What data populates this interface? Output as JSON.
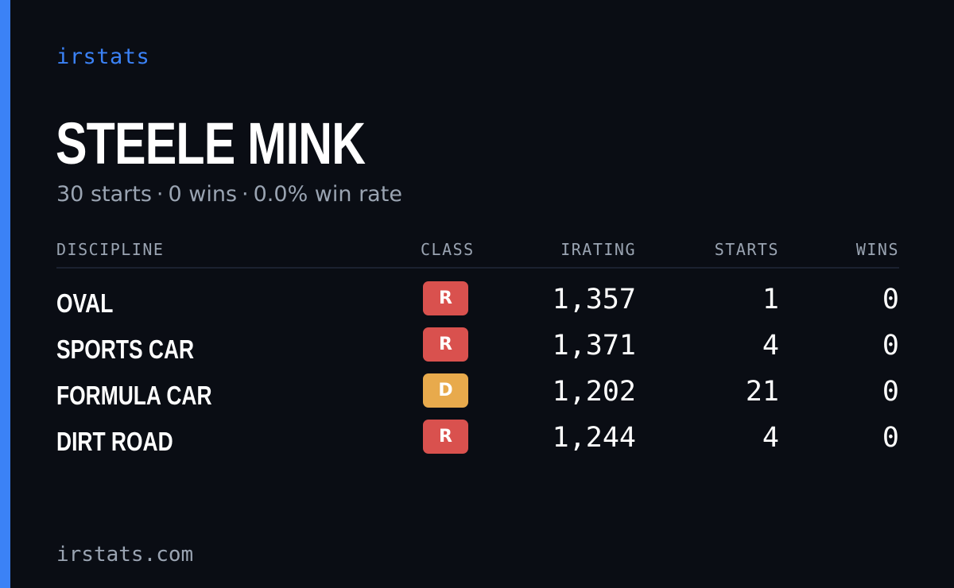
{
  "brand": "irstats",
  "driver": {
    "name": "STEELE MINK",
    "starts_text": "30 starts",
    "wins_text": "0 wins",
    "winrate_text": "0.0% win rate",
    "separator": "·"
  },
  "table": {
    "headers": {
      "discipline": "DISCIPLINE",
      "class": "CLASS",
      "irating": "IRATING",
      "starts": "STARTS",
      "wins": "WINS"
    },
    "rows": [
      {
        "discipline": "OVAL",
        "class": "R",
        "class_color": "#d9514e",
        "irating": "1,357",
        "starts": "1",
        "wins": "0"
      },
      {
        "discipline": "SPORTS CAR",
        "class": "R",
        "class_color": "#d9514e",
        "irating": "1,371",
        "starts": "4",
        "wins": "0"
      },
      {
        "discipline": "FORMULA CAR",
        "class": "D",
        "class_color": "#e8aa4c",
        "irating": "1,202",
        "starts": "21",
        "wins": "0"
      },
      {
        "discipline": "DIRT ROAD",
        "class": "R",
        "class_color": "#d9514e",
        "irating": "1,244",
        "starts": "4",
        "wins": "0"
      }
    ]
  },
  "footer": "irstats.com",
  "colors": {
    "background": "#0a0d14",
    "accent": "#3b82f6",
    "muted_text": "#9aa4b2",
    "class_r": "#d9514e",
    "class_d": "#e8aa4c"
  }
}
